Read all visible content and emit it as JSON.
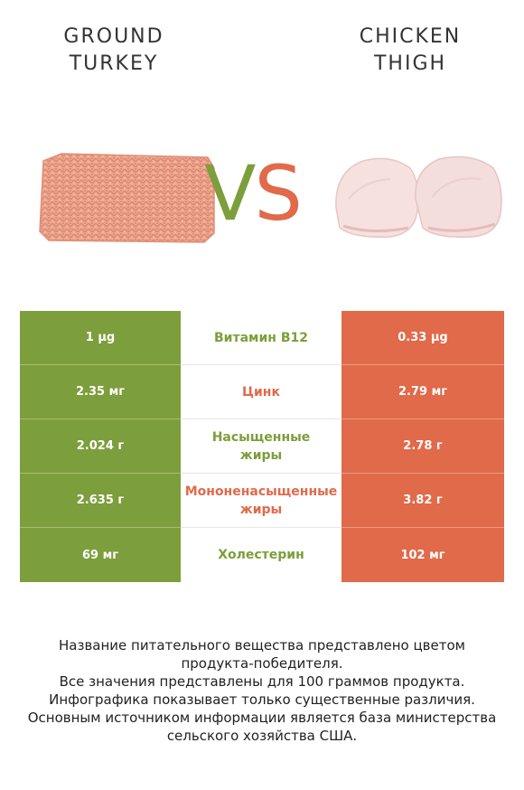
{
  "header": {
    "left_title": [
      "GROUND",
      "TURKEY"
    ],
    "right_title": [
      "CHICKEN",
      "THIGH"
    ],
    "vs": {
      "v": "V",
      "s": "S"
    }
  },
  "colors": {
    "winner_left": "#7d9e3c",
    "winner_right": "#e06a4a"
  },
  "rows": [
    {
      "left": "1 µg",
      "nutrient": "Витамин B12",
      "right": "0.33 µg",
      "winner": "left"
    },
    {
      "left": "2.35 мг",
      "nutrient": "Цинк",
      "right": "2.79 мг",
      "winner": "right"
    },
    {
      "left": "2.024 г",
      "nutrient": "Насыщенные\nжиры",
      "right": "2.78 г",
      "winner": "left"
    },
    {
      "left": "2.635 г",
      "nutrient": "Мононенасыщенные\nжиры",
      "right": "3.82 г",
      "winner": "right"
    },
    {
      "left": "69 мг",
      "nutrient": "Холестерин",
      "right": "102 мг",
      "winner": "left"
    }
  ],
  "footer": {
    "line1": "Название питательного вещества представлено цветом",
    "line2": "продукта-победителя.",
    "line3": "Все значения представлены для 100 граммов продукта.",
    "line4": "Инфографика показывает только существенные различия.",
    "line5": "Основным источником информации является база министерства",
    "line6": "сельского хозяйства США."
  }
}
